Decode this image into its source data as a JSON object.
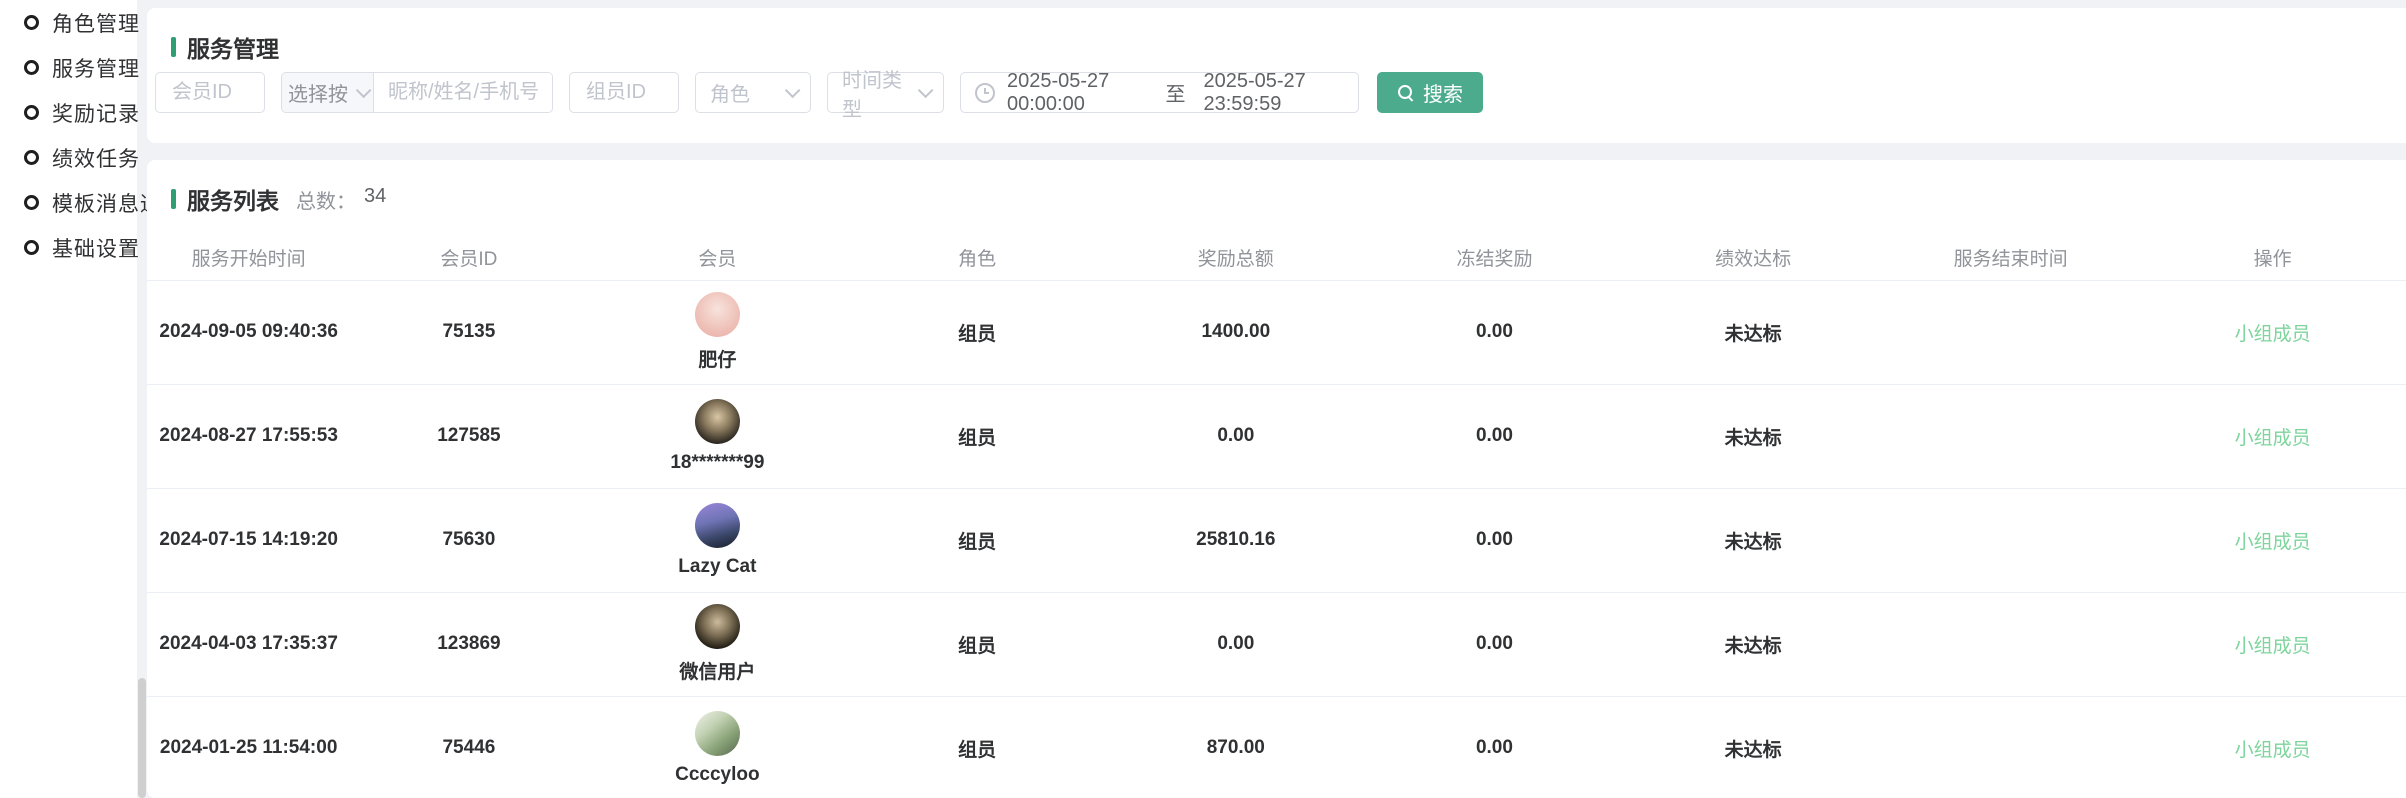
{
  "colors": {
    "accent_green_bar": "#2f9e74",
    "search_button_green": "#4cab8c",
    "action_link_green": "#7dd49c",
    "page_background": "#f0f2f5"
  },
  "sidebar": {
    "items": [
      {
        "label": "角色管理"
      },
      {
        "label": "服务管理"
      },
      {
        "label": "奖励记录"
      },
      {
        "label": "绩效任务"
      },
      {
        "label": "模板消息通知"
      },
      {
        "label": "基础设置"
      }
    ]
  },
  "filter_card": {
    "title": "服务管理",
    "member_id_placeholder": "会员ID",
    "select_by_label": "选择按",
    "keyword_placeholder": "昵称/姓名/手机号",
    "group_member_id_placeholder": "组员ID",
    "role_placeholder": "角色",
    "time_type_placeholder": "时间类型",
    "date_start": "2025-05-27 00:00:00",
    "date_separator": "至",
    "date_end": "2025-05-27 23:59:59",
    "search_label": "搜索"
  },
  "table_card": {
    "title": "服务列表",
    "total_label": "总数：",
    "total_value": "34",
    "columns": [
      "服务开始时间",
      "会员ID",
      "会员",
      "角色",
      "奖励总额",
      "冻结奖励",
      "绩效达标",
      "服务结束时间",
      "操作"
    ],
    "rows": [
      {
        "start_time": "2024-09-05 09:40:36",
        "member_id": "75135",
        "nickname": "肥仔",
        "role": "组员",
        "reward_total": "1400.00",
        "frozen_reward": "0.00",
        "kpi_status": "未达标",
        "end_time": "",
        "action": "小组成员",
        "avatar_bg": "radial-gradient(circle at 50% 38%, #f7e3dd 0%, #efc3ba 55%, #e8aca4 100%)"
      },
      {
        "start_time": "2024-08-27 17:55:53",
        "member_id": "127585",
        "nickname": "18*******99",
        "role": "组员",
        "reward_total": "0.00",
        "frozen_reward": "0.00",
        "kpi_status": "未达标",
        "end_time": "",
        "action": "小组成员",
        "avatar_bg": "radial-gradient(circle at 50% 40%, #d9c6a6 0%, #8a7a5e 38%, #2b2620 75%)"
      },
      {
        "start_time": "2024-07-15 14:19:20",
        "member_id": "75630",
        "nickname": "Lazy Cat",
        "role": "组员",
        "reward_total": "25810.16",
        "frozen_reward": "0.00",
        "kpi_status": "未达标",
        "end_time": "",
        "action": "小组成员",
        "avatar_bg": "linear-gradient(165deg, #9a86da 0%, #6f74b5 40%, #3a4668 70%, #171c28 100%)"
      },
      {
        "start_time": "2024-04-03 17:35:37",
        "member_id": "123869",
        "nickname": "微信用户",
        "role": "组员",
        "reward_total": "0.00",
        "frozen_reward": "0.00",
        "kpi_status": "未达标",
        "end_time": "",
        "action": "小组成员",
        "avatar_bg": "radial-gradient(circle at 50% 40%, #cdbb9d 0%, #7d6f55 38%, #1a160f 78%)"
      },
      {
        "start_time": "2024-01-25 11:54:00",
        "member_id": "75446",
        "nickname": "Ccccyloo",
        "role": "组员",
        "reward_total": "870.00",
        "frozen_reward": "0.00",
        "kpi_status": "未达标",
        "end_time": "",
        "action": "小组成员",
        "avatar_bg": "linear-gradient(140deg, #eef2ea 0%, #c3d2b4 35%, #8aa378 65%, #55664d 100%)"
      }
    ]
  }
}
